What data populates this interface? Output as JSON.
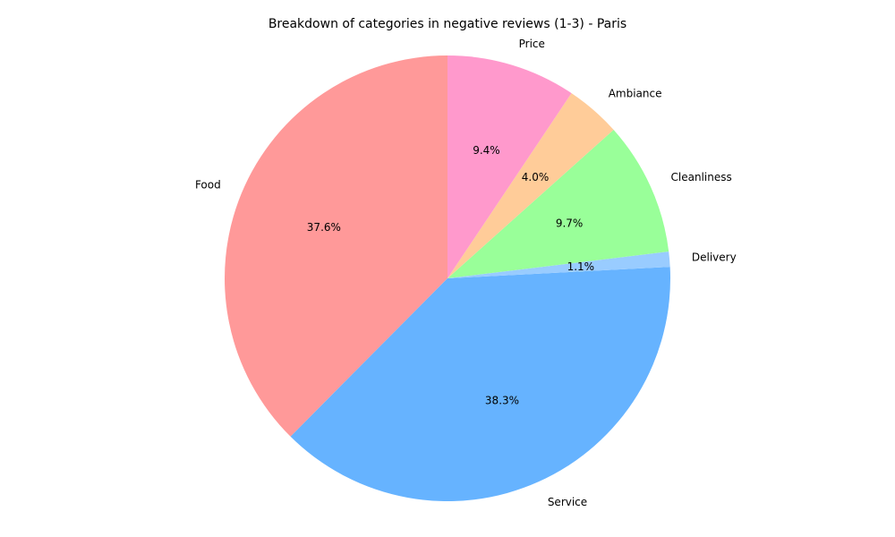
{
  "chart_data": {
    "type": "pie",
    "title": "Breakdown of categories in negative reviews (1-3) - Paris",
    "start_angle_deg": 90,
    "direction": "counterclockwise",
    "slices": [
      {
        "label": "Food",
        "value": 37.6,
        "pct_label": "37.6%",
        "color": "#ff9999"
      },
      {
        "label": "Service",
        "value": 38.3,
        "pct_label": "38.3%",
        "color": "#66b3ff"
      },
      {
        "label": "Delivery",
        "value": 1.1,
        "pct_label": "1.1%",
        "color": "#99ccff"
      },
      {
        "label": "Cleanliness",
        "value": 9.7,
        "pct_label": "9.7%",
        "color": "#99ff99"
      },
      {
        "label": "Ambiance",
        "value": 4.0,
        "pct_label": "4.0%",
        "color": "#ffcc99"
      },
      {
        "label": "Price",
        "value": 9.4,
        "pct_label": "9.4%",
        "color": "#ff99cc"
      }
    ]
  }
}
